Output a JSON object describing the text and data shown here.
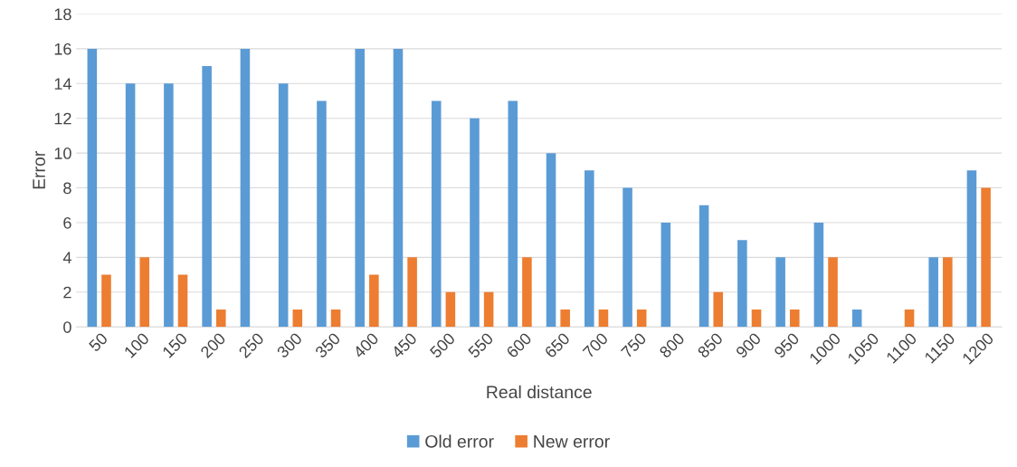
{
  "chart_data": {
    "type": "bar",
    "xlabel": "Real distance",
    "ylabel": "Error",
    "categories": [
      "50",
      "100",
      "150",
      "200",
      "250",
      "300",
      "350",
      "400",
      "450",
      "500",
      "550",
      "600",
      "650",
      "700",
      "750",
      "800",
      "850",
      "900",
      "950",
      "1000",
      "1050",
      "1100",
      "1150",
      "1200"
    ],
    "series": [
      {
        "name": "Old error",
        "color": "#5b9bd5",
        "values": [
          16,
          14,
          14,
          15,
          16,
          14,
          13,
          16,
          16,
          13,
          12,
          13,
          10,
          9,
          8,
          6,
          7,
          5,
          4,
          6,
          1,
          0,
          4,
          9
        ]
      },
      {
        "name": "New error",
        "color": "#ed7d31",
        "values": [
          3,
          4,
          3,
          1,
          0,
          1,
          1,
          3,
          4,
          2,
          2,
          4,
          1,
          1,
          1,
          0,
          2,
          1,
          1,
          4,
          0,
          1,
          4,
          8
        ]
      }
    ],
    "ylim": [
      0,
      18
    ],
    "yticks": [
      0,
      2,
      4,
      6,
      8,
      10,
      12,
      14,
      16,
      18
    ],
    "grid": "y",
    "legend": "bottom"
  }
}
